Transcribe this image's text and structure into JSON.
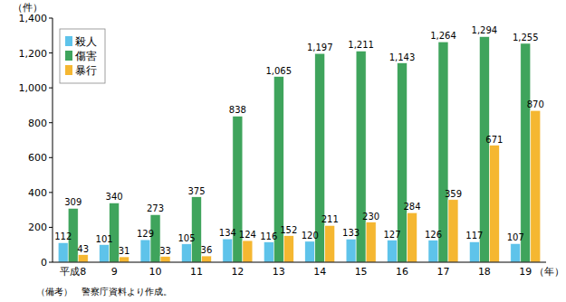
{
  "chart_data": {
    "type": "bar",
    "categories": [
      "平成8",
      "9",
      "10",
      "11",
      "12",
      "13",
      "14",
      "15",
      "16",
      "17",
      "18",
      "19"
    ],
    "series": [
      {
        "name": "殺人",
        "color": "#5ec3ea",
        "values": [
          112,
          101,
          129,
          105,
          134,
          116,
          120,
          133,
          127,
          126,
          117,
          107
        ]
      },
      {
        "name": "傷害",
        "color": "#3fa45c",
        "values": [
          309,
          340,
          273,
          375,
          838,
          1065,
          1197,
          1211,
          1143,
          1264,
          1294,
          1255
        ],
        "value_labels": [
          "309",
          "340",
          "273",
          "375",
          "838",
          "1,065",
          "1,197",
          "1,211",
          "1,143",
          "1,264",
          "1,294",
          "1,255"
        ]
      },
      {
        "name": "暴行",
        "color": "#f5b731",
        "values": [
          43,
          31,
          33,
          36,
          124,
          152,
          211,
          230,
          284,
          359,
          671,
          870
        ]
      }
    ],
    "ylim": [
      0,
      1400
    ],
    "yticks": [
      0,
      200,
      400,
      600,
      800,
      {
        "value": 1000,
        "label": "1,000"
      },
      {
        "value": 1200,
        "label": "1,200"
      },
      {
        "value": 1400,
        "label": "1,400"
      }
    ],
    "y_label": "（件）",
    "x_label": "（年）",
    "note": "（備考）　警察庁資料より作成。",
    "grid": false,
    "legend": "upper left",
    "data_labels": true
  }
}
